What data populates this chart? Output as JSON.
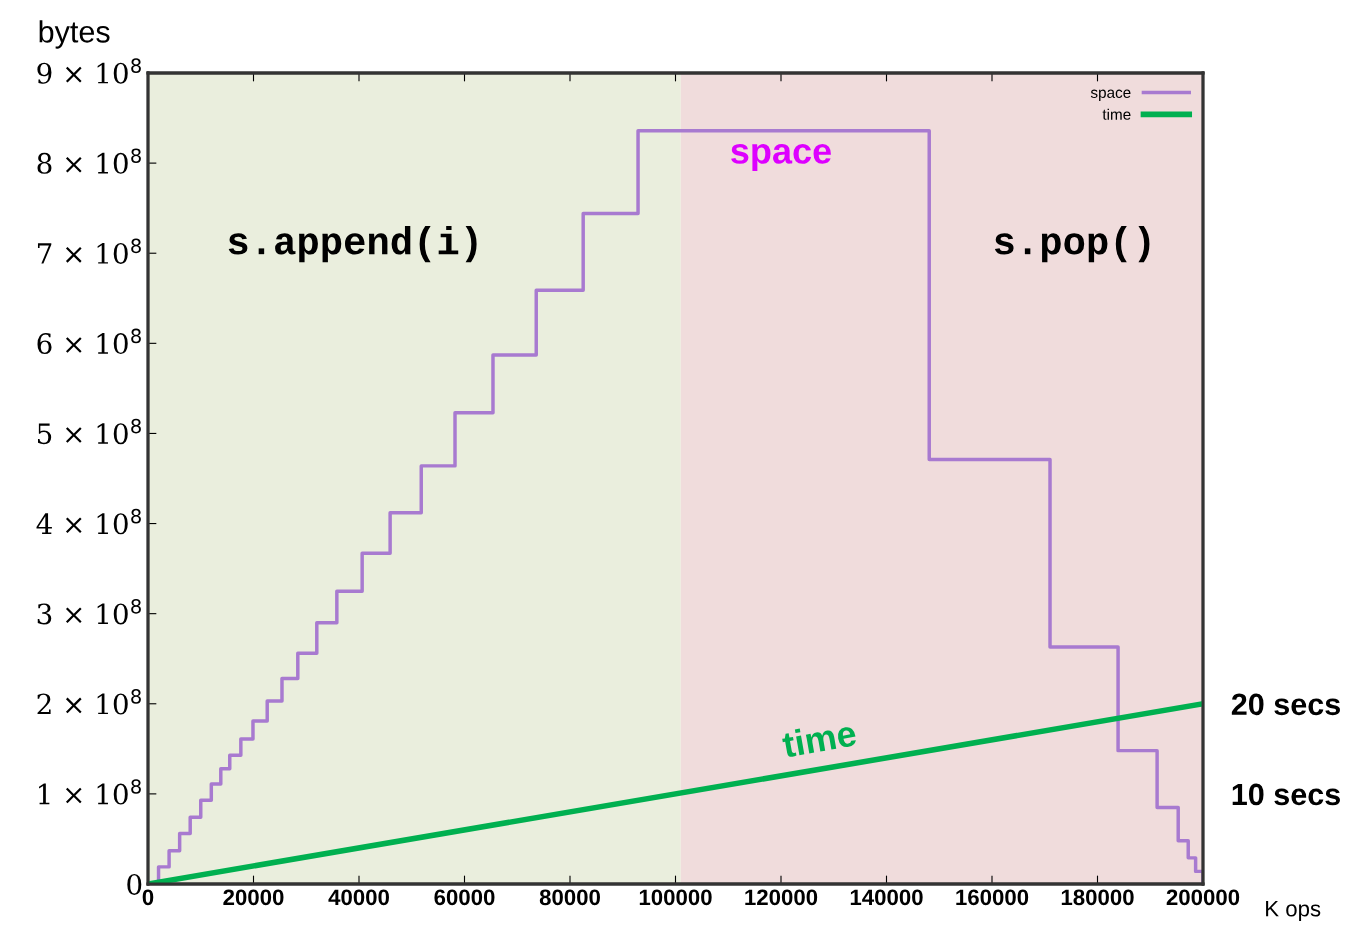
{
  "chart_data": {
    "type": "step",
    "xlabel": "K ops",
    "ylabel": "bytes",
    "xlim": [
      0,
      200000
    ],
    "xticks": [
      0,
      20000,
      40000,
      60000,
      80000,
      100000,
      120000,
      140000,
      160000,
      180000,
      200000
    ],
    "ylim": [
      0,
      900000000
    ],
    "yticks": [
      {
        "value": 0,
        "label": "0"
      },
      {
        "value": 100000000,
        "label": "1 × 10$^{8}$"
      },
      {
        "value": 200000000,
        "label": "2 × 10$^{8}$"
      },
      {
        "value": 300000000,
        "label": "3 × 10$^{8}$"
      },
      {
        "value": 400000000,
        "label": "4 × 10$^{8}$"
      },
      {
        "value": 500000000,
        "label": "5 × 10$^{8}$"
      },
      {
        "value": 600000000,
        "label": "6 × 10$^{8}$"
      },
      {
        "value": 700000000,
        "label": "7 × 10$^{8}$"
      },
      {
        "value": 800000000,
        "label": "8 × 10$^{8}$"
      },
      {
        "value": 900000000,
        "label": "9 × 10$^{8}$"
      }
    ],
    "y2lim": [
      0,
      90
    ],
    "y2ticks": [
      {
        "value": 10,
        "label": "10 secs"
      },
      {
        "value": 20,
        "label": "20 secs"
      }
    ],
    "series": [
      {
        "name": "space",
        "color": "#a87ad0",
        "x": [
          0,
          2000,
          4000,
          6000,
          8000,
          10000,
          12000,
          13800,
          15500,
          17600,
          19900,
          22600,
          25400,
          28400,
          32000,
          35800,
          40600,
          45900,
          51800,
          58200,
          65400,
          73600,
          82500,
          92900,
          148100,
          171000,
          183900,
          191300,
          195300,
          197200,
          198600,
          200000
        ],
        "values": [
          0,
          19000000,
          37000000,
          56000000,
          74000000,
          93000000,
          111000000,
          128000000,
          143000000,
          161000000,
          181000000,
          203000000,
          228000000,
          256000000,
          290000000,
          325000000,
          367000000,
          412000000,
          464000000,
          523000000,
          587000000,
          659000000,
          744000000,
          836000000,
          471000000,
          263000000,
          148000000,
          85000000,
          48000000,
          29000000,
          14000000,
          0
        ]
      },
      {
        "name": "time",
        "type": "line",
        "axis": "y2",
        "color": "#00b050",
        "x": [
          0,
          200000
        ],
        "values": [
          0,
          20
        ]
      }
    ],
    "bands": [
      {
        "axis": "x",
        "from": 0,
        "to": 101000,
        "color": "#eaeedd"
      },
      {
        "axis": "x",
        "from": 101000,
        "to": 200000,
        "color": "#f0dcdc"
      }
    ],
    "annotations": [
      "space",
      "time",
      "s.append(i)",
      "s.pop()"
    ],
    "legend": "top right",
    "grid": false
  }
}
